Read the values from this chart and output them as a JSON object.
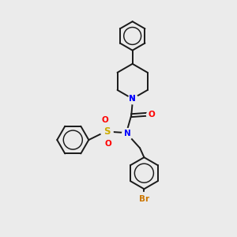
{
  "background_color": "#ebebeb",
  "bond_color": "#1a1a1a",
  "N_color": "#0000FF",
  "O_color": "#FF0000",
  "S_color": "#CCAA00",
  "Br_color": "#CC7700",
  "bond_width": 1.4,
  "figsize": [
    3.0,
    3.0
  ],
  "dpi": 100,
  "xlim": [
    0,
    10
  ],
  "ylim": [
    0,
    10
  ]
}
